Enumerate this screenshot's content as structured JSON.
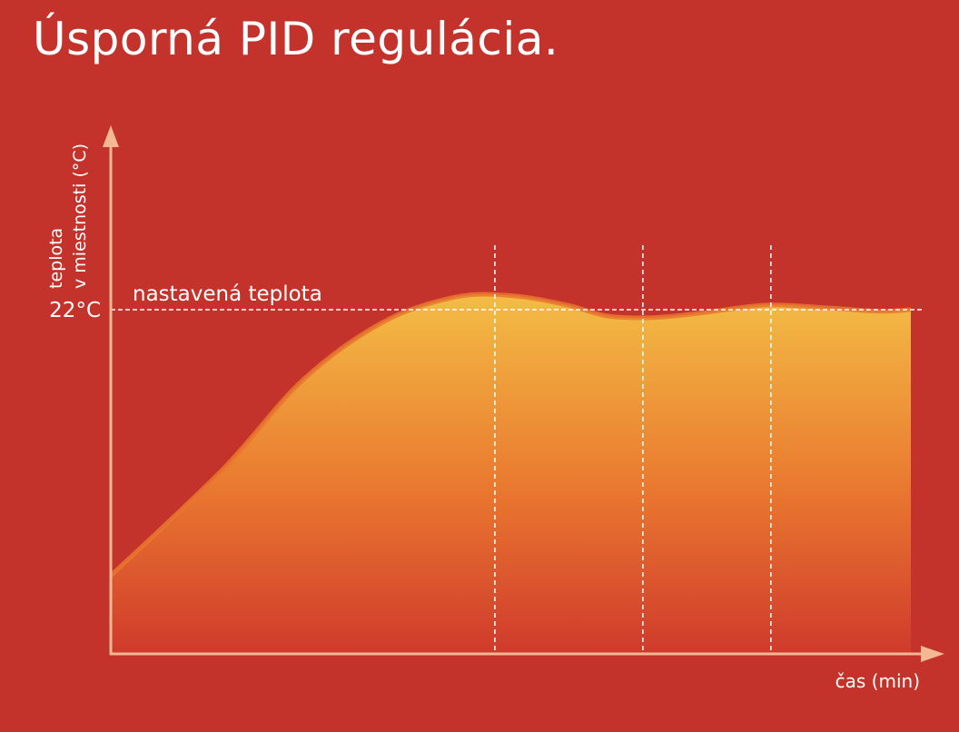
{
  "title": "Úsporná PID regulácia.",
  "chart_data": {
    "type": "area",
    "ylabel_line1": "teplota",
    "ylabel_line2": "v miestnosti (°C)",
    "xlabel": "čas (min)",
    "setpoint": {
      "value": 22,
      "label": "nastavená teplota",
      "tick_label": "22°C"
    },
    "ylim": [
      0,
      30
    ],
    "xlim": [
      0,
      100
    ],
    "series": [
      {
        "values_x": [
          0,
          14,
          24,
          34,
          43,
          50,
          57,
          62,
          68,
          74,
          82,
          90,
          96,
          100
        ],
        "values_y": [
          5.0,
          11.8,
          17.5,
          21.2,
          22.8,
          22.9,
          22.3,
          21.6,
          21.5,
          21.8,
          22.3,
          22.1,
          21.9,
          22.0
        ]
      }
    ],
    "marker_lines_x": [
      48,
      66.5,
      82.5
    ],
    "colors": {
      "background": "#c4322c",
      "area_top": "#f3bd45",
      "area_mid": "#e9772f",
      "area_bottom": "#cf3a2c",
      "axis": "#f4b894",
      "line": "#ffffff"
    }
  }
}
